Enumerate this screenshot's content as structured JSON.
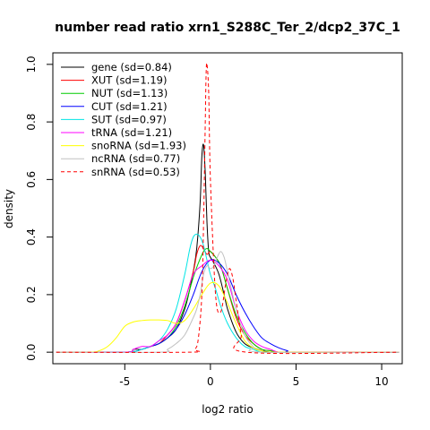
{
  "chart_data": {
    "type": "line",
    "title": "number read ratio xrn1_S288C_Ter_2/dcp2_37C_1",
    "xlabel": "log2 ratio",
    "ylabel": "density",
    "xlim": [
      -9.2,
      11.2
    ],
    "ylim": [
      -0.04,
      1.04
    ],
    "x_ticks": [
      -5,
      0,
      5,
      10
    ],
    "x_tick_labels": [
      "-5",
      "0",
      "5",
      "10"
    ],
    "y_ticks": [
      0.0,
      0.2,
      0.4,
      0.6,
      0.8,
      1.0
    ],
    "y_tick_labels": [
      "0.0",
      "0.2",
      "0.4",
      "0.6",
      "0.8",
      "1.0"
    ],
    "grid": false,
    "legend_position": "top-left",
    "series": [
      {
        "name": "gene (sd=0.84)",
        "color": "#000000",
        "dash": false,
        "x": [
          -9,
          -5,
          -4.5,
          -4,
          -3.5,
          -3,
          -2.5,
          -2,
          -1.5,
          -1.2,
          -1,
          -0.8,
          -0.6,
          -0.5,
          -0.4,
          -0.3,
          -0.2,
          -0.1,
          0,
          0.2,
          0.5,
          0.8,
          1,
          1.5,
          2,
          2.5,
          3,
          3.5,
          4,
          5,
          11
        ],
        "y": [
          0,
          0,
          0.01,
          0.01,
          0.02,
          0.03,
          0.05,
          0.08,
          0.15,
          0.22,
          0.28,
          0.36,
          0.52,
          0.68,
          0.72,
          0.62,
          0.45,
          0.35,
          0.33,
          0.31,
          0.27,
          0.2,
          0.15,
          0.07,
          0.03,
          0.015,
          0.005,
          0,
          0,
          0,
          0
        ]
      },
      {
        "name": "XUT (sd=1.19)",
        "color": "#ff0000",
        "dash": false,
        "x": [
          -9,
          -5,
          -4,
          -3.5,
          -3,
          -2.5,
          -2,
          -1.5,
          -1,
          -0.8,
          -0.6,
          -0.4,
          -0.2,
          0,
          0.3,
          0.6,
          1,
          1.5,
          2,
          2.5,
          3,
          3.5,
          4,
          5,
          11
        ],
        "y": [
          0,
          0,
          0.01,
          0.02,
          0.03,
          0.06,
          0.1,
          0.18,
          0.28,
          0.34,
          0.37,
          0.36,
          0.34,
          0.35,
          0.33,
          0.3,
          0.22,
          0.12,
          0.06,
          0.03,
          0.01,
          0.005,
          0,
          0,
          0
        ]
      },
      {
        "name": "NUT (sd=1.13)",
        "color": "#00cc00",
        "dash": false,
        "x": [
          -9,
          -5,
          -4,
          -3.5,
          -3,
          -2.5,
          -2,
          -1.5,
          -1,
          -0.7,
          -0.4,
          -0.2,
          0,
          0.3,
          0.6,
          1,
          1.5,
          2,
          2.5,
          3,
          3.5,
          4,
          5,
          11
        ],
        "y": [
          0,
          0,
          0.01,
          0.02,
          0.03,
          0.05,
          0.09,
          0.16,
          0.26,
          0.31,
          0.35,
          0.36,
          0.35,
          0.33,
          0.3,
          0.22,
          0.13,
          0.07,
          0.03,
          0.01,
          0.005,
          0,
          0,
          0
        ]
      },
      {
        "name": "CUT (sd=1.21)",
        "color": "#0000ff",
        "dash": false,
        "x": [
          -9,
          -5,
          -4,
          -3.5,
          -3,
          -2.5,
          -2,
          -1.5,
          -1,
          -0.5,
          0,
          0.5,
          1,
          1.5,
          2,
          2.5,
          3,
          3.5,
          4,
          4.5,
          5,
          11
        ],
        "y": [
          0,
          0,
          0.01,
          0.02,
          0.03,
          0.05,
          0.08,
          0.13,
          0.2,
          0.28,
          0.32,
          0.31,
          0.27,
          0.2,
          0.14,
          0.09,
          0.05,
          0.03,
          0.015,
          0.005,
          0,
          0
        ]
      },
      {
        "name": "SUT (sd=0.97)",
        "color": "#00e5e5",
        "dash": false,
        "x": [
          -9,
          -5,
          -4,
          -3.5,
          -3,
          -2.5,
          -2,
          -1.5,
          -1.2,
          -1,
          -0.8,
          -0.6,
          -0.4,
          -0.2,
          0,
          0.3,
          0.6,
          1,
          1.5,
          2,
          2.5,
          3,
          4,
          11
        ],
        "y": [
          0,
          0,
          0.01,
          0.02,
          0.04,
          0.08,
          0.15,
          0.27,
          0.36,
          0.4,
          0.41,
          0.4,
          0.37,
          0.32,
          0.27,
          0.22,
          0.16,
          0.1,
          0.05,
          0.02,
          0.01,
          0,
          0,
          0
        ]
      },
      {
        "name": "tRNA (sd=1.21)",
        "color": "#ff00ff",
        "dash": false,
        "x": [
          -9,
          -5,
          -4.5,
          -4,
          -3.5,
          -3,
          -2.5,
          -2,
          -1.5,
          -1,
          -0.5,
          0,
          0.5,
          1,
          1.5,
          2,
          2.5,
          3,
          3.5,
          4,
          5,
          11
        ],
        "y": [
          0,
          0,
          0.01,
          0.02,
          0.02,
          0.04,
          0.06,
          0.1,
          0.18,
          0.27,
          0.3,
          0.32,
          0.3,
          0.25,
          0.15,
          0.08,
          0.04,
          0.02,
          0.01,
          0,
          0,
          0
        ]
      },
      {
        "name": "snoRNA (sd=1.93)",
        "color": "#ffff00",
        "dash": false,
        "x": [
          -9,
          -7,
          -6.5,
          -6,
          -5.5,
          -5,
          -4.5,
          -4,
          -3.5,
          -3,
          -2.5,
          -2,
          -1.5,
          -1,
          -0.5,
          0,
          0.5,
          1,
          1.5,
          2,
          2.5,
          3,
          4,
          11
        ],
        "y": [
          0,
          0,
          0.005,
          0.02,
          0.05,
          0.09,
          0.105,
          0.11,
          0.112,
          0.112,
          0.11,
          0.1,
          0.11,
          0.15,
          0.2,
          0.24,
          0.23,
          0.17,
          0.1,
          0.04,
          0.015,
          0.005,
          0,
          0
        ]
      },
      {
        "name": "ncRNA (sd=0.77)",
        "color": "#c0c0c0",
        "dash": false,
        "x": [
          -9,
          -3,
          -2.5,
          -2,
          -1.5,
          -1,
          -0.8,
          -0.6,
          -0.4,
          -0.2,
          0,
          0.2,
          0.4,
          0.6,
          0.8,
          1,
          1.5,
          2,
          2.5,
          3,
          11
        ],
        "y": [
          0,
          0,
          0.01,
          0.03,
          0.06,
          0.12,
          0.15,
          0.2,
          0.27,
          0.3,
          0.29,
          0.3,
          0.33,
          0.35,
          0.33,
          0.28,
          0.15,
          0.06,
          0.02,
          0,
          0
        ]
      },
      {
        "name": "snRNA (sd=0.53)",
        "color": "#ff0000",
        "dash": true,
        "x": [
          -9,
          -1.3,
          -0.9,
          -0.7,
          -0.5,
          -0.4,
          -0.3,
          -0.25,
          -0.2,
          -0.1,
          0,
          0.3,
          0.6,
          0.9,
          1.1,
          1.3,
          1.5,
          1.8,
          2.1,
          11
        ],
        "y": [
          0,
          0,
          0.01,
          0.05,
          0.2,
          0.45,
          0.8,
          0.97,
          1.0,
          0.9,
          0.6,
          0.2,
          0.14,
          0.24,
          0.29,
          0.26,
          0.18,
          0.06,
          0,
          0
        ]
      }
    ]
  }
}
